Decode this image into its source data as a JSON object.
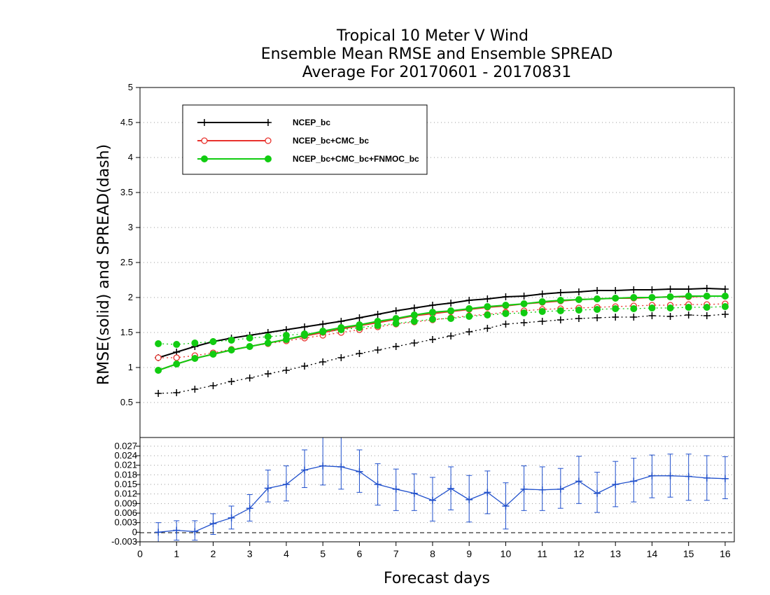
{
  "title_lines": [
    "Tropical 10 Meter V Wind",
    "Ensemble Mean RMSE and Ensemble SPREAD",
    "Average For 20170601 - 20170831"
  ],
  "colors": {
    "NCEP_bc": "#000000",
    "NCEP_bc+CMC_bc": "#e8322d",
    "NCEP_bc+CMC_bc+FNMOC_bc": "#11cc11",
    "diff": "#2050cc",
    "grid": "#999999"
  },
  "chart_data": [
    {
      "type": "line",
      "ylabel": "RMSE(solid)  and  SPREAD(dash)",
      "xlim": [
        0,
        16.25
      ],
      "ylim": [
        0,
        5
      ],
      "y_ticks": [
        "0.5",
        "1",
        "1.5",
        "2",
        "2.5",
        "3",
        "3.5",
        "4",
        "4.5",
        "5"
      ],
      "grid": true,
      "legend_position": "top-left",
      "x": [
        0.5,
        1,
        1.5,
        2,
        2.5,
        3,
        3.5,
        4,
        4.5,
        5,
        5.5,
        6,
        6.5,
        7,
        7.5,
        8,
        8.5,
        9,
        9.5,
        10,
        10.5,
        11,
        11.5,
        12,
        12.5,
        13,
        13.5,
        14,
        14.5,
        15,
        15.5,
        16
      ],
      "series": [
        {
          "name": "NCEP_bc",
          "marker": "plus",
          "rmse": [
            1.14,
            1.22,
            1.3,
            1.37,
            1.42,
            1.46,
            1.5,
            1.54,
            1.58,
            1.62,
            1.66,
            1.71,
            1.76,
            1.81,
            1.85,
            1.89,
            1.92,
            1.96,
            1.98,
            2.01,
            2.02,
            2.05,
            2.07,
            2.08,
            2.1,
            2.1,
            2.11,
            2.11,
            2.12,
            2.12,
            2.13,
            2.12
          ],
          "spread": [
            0.63,
            0.64,
            0.69,
            0.74,
            0.8,
            0.85,
            0.91,
            0.96,
            1.02,
            1.08,
            1.14,
            1.2,
            1.25,
            1.3,
            1.35,
            1.4,
            1.45,
            1.51,
            1.56,
            1.62,
            1.64,
            1.66,
            1.68,
            1.7,
            1.71,
            1.72,
            1.72,
            1.74,
            1.73,
            1.75,
            1.74,
            1.76
          ]
        },
        {
          "name": "NCEP_bc+CMC_bc",
          "marker": "open-circle",
          "rmse": [
            0.96,
            1.05,
            1.13,
            1.19,
            1.25,
            1.3,
            1.35,
            1.4,
            1.45,
            1.5,
            1.55,
            1.6,
            1.64,
            1.69,
            1.74,
            1.77,
            1.8,
            1.83,
            1.86,
            1.88,
            1.91,
            1.93,
            1.95,
            1.97,
            1.98,
            1.99,
            1.99,
            2.0,
            2.01,
            2.01,
            2.02,
            2.02
          ],
          "spread": [
            1.14,
            1.14,
            1.17,
            1.21,
            1.26,
            1.3,
            1.34,
            1.38,
            1.42,
            1.46,
            1.5,
            1.54,
            1.58,
            1.62,
            1.65,
            1.68,
            1.71,
            1.74,
            1.76,
            1.79,
            1.81,
            1.83,
            1.84,
            1.85,
            1.86,
            1.87,
            1.88,
            1.89,
            1.89,
            1.9,
            1.9,
            1.91
          ]
        },
        {
          "name": "NCEP_bc+CMC_bc+FNMOC_bc",
          "marker": "filled-circle",
          "rmse": [
            0.96,
            1.05,
            1.13,
            1.19,
            1.25,
            1.3,
            1.35,
            1.4,
            1.46,
            1.52,
            1.57,
            1.61,
            1.66,
            1.7,
            1.75,
            1.79,
            1.81,
            1.84,
            1.87,
            1.89,
            1.91,
            1.94,
            1.96,
            1.97,
            1.98,
            1.99,
            2.0,
            2.0,
            2.01,
            2.02,
            2.02,
            2.02
          ],
          "spread": [
            1.34,
            1.33,
            1.35,
            1.37,
            1.39,
            1.42,
            1.44,
            1.46,
            1.48,
            1.51,
            1.54,
            1.57,
            1.6,
            1.63,
            1.66,
            1.69,
            1.7,
            1.73,
            1.75,
            1.77,
            1.78,
            1.8,
            1.81,
            1.82,
            1.83,
            1.84,
            1.84,
            1.85,
            1.85,
            1.86,
            1.86,
            1.87
          ]
        }
      ]
    },
    {
      "type": "line",
      "xlabel": "Forecast days",
      "xlim": [
        0,
        16.25
      ],
      "ylim": [
        -0.003,
        0.0297
      ],
      "x_ticks": [
        "0",
        "1",
        "2",
        "3",
        "4",
        "5",
        "6",
        "7",
        "8",
        "9",
        "10",
        "11",
        "12",
        "13",
        "14",
        "15",
        "16"
      ],
      "y_ticks": [
        "-0.003",
        "0",
        "0.003",
        "0.006",
        "0.009",
        "0.012",
        "0.015",
        "0.018",
        "0.021",
        "0.024",
        "0.027"
      ],
      "grid": true,
      "x": [
        0.5,
        1,
        1.5,
        2,
        2.5,
        3,
        3.5,
        4,
        4.5,
        5,
        5.5,
        6,
        6.5,
        7,
        7.5,
        8,
        8.5,
        9,
        9.5,
        10,
        10.5,
        11,
        11.5,
        12,
        12.5,
        13,
        13.5,
        14,
        14.5,
        15,
        15.5,
        16
      ],
      "series": [
        {
          "marker": "plus",
          "values": [
            0.0,
            0.0006,
            0.0002,
            0.0027,
            0.0045,
            0.0075,
            0.0138,
            0.015,
            0.0195,
            0.0208,
            0.0205,
            0.019,
            0.015,
            0.0135,
            0.0122,
            0.01,
            0.0137,
            0.0102,
            0.0125,
            0.0082,
            0.0135,
            0.0133,
            0.0135,
            0.016,
            0.0122,
            0.015,
            0.016,
            0.0177,
            0.0177,
            0.0175,
            0.017,
            0.0168
          ],
          "err_low": [
            -0.003,
            -0.0025,
            -0.0025,
            -0.0007,
            0.001,
            0.0035,
            0.0095,
            0.0098,
            0.014,
            0.0148,
            0.0135,
            0.0125,
            0.0085,
            0.0068,
            0.0068,
            0.0035,
            0.007,
            0.0032,
            0.0058,
            0.001,
            0.0068,
            0.0068,
            0.0075,
            0.009,
            0.0062,
            0.008,
            0.0095,
            0.0108,
            0.011,
            0.01,
            0.01,
            0.0105
          ],
          "err_high": [
            0.003,
            0.0036,
            0.0036,
            0.0058,
            0.0082,
            0.0118,
            0.0195,
            0.0208,
            0.0258,
            0.0297,
            0.0297,
            0.0258,
            0.0215,
            0.0198,
            0.0183,
            0.0172,
            0.0205,
            0.0178,
            0.0192,
            0.0155,
            0.0208,
            0.0205,
            0.02,
            0.0238,
            0.0188,
            0.0222,
            0.0232,
            0.0242,
            0.0245,
            0.0245,
            0.024,
            0.0237
          ]
        }
      ]
    }
  ]
}
